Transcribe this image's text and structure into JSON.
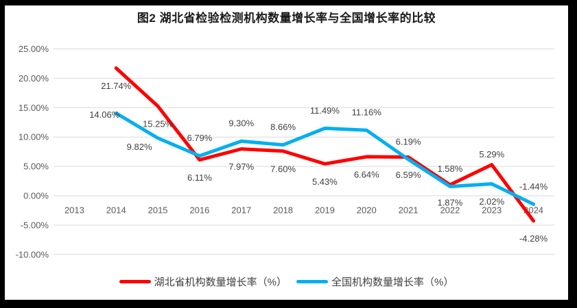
{
  "chart_data": {
    "type": "line",
    "title": "图2  湖北省检验检测机构数量增长率与全国增长率的比较",
    "categories": [
      "2013",
      "2014",
      "2015",
      "2016",
      "2017",
      "2018",
      "2019",
      "2020",
      "2021",
      "2022",
      "2023",
      "2024"
    ],
    "y_axis": {
      "ticks": [
        {
          "label": "25.00%",
          "value": 25
        },
        {
          "label": "20.00%",
          "value": 20
        },
        {
          "label": "15.00%",
          "value": 15
        },
        {
          "label": "10.00%",
          "value": 10
        },
        {
          "label": "5.00%",
          "value": 5
        },
        {
          "label": "0.00%",
          "value": 0
        },
        {
          "label": "-5.00%",
          "value": -5
        },
        {
          "label": "-10.00%",
          "value": -10
        }
      ],
      "ylim": [
        -10,
        25
      ]
    },
    "grid": true,
    "legend_position": "bottom",
    "series": [
      {
        "name": "湖北省机构数量增长率（%）",
        "color": "#FF0000",
        "values": [
          null,
          21.74,
          15.25,
          6.11,
          7.97,
          7.6,
          5.43,
          6.64,
          6.59,
          1.87,
          5.29,
          -4.28
        ],
        "labels": [
          null,
          "21.74%",
          "15.25%",
          "6.11%",
          "7.97%",
          "7.60%",
          "5.43%",
          "6.64%",
          "6.59%",
          "1.87%",
          "5.29%",
          "-4.28%"
        ],
        "label_positions": [
          null,
          "below",
          "below",
          "below",
          "below",
          "below",
          "below",
          "below",
          "below",
          "below",
          "nearabove",
          "below"
        ]
      },
      {
        "name": "全国机构数量增长率（%）",
        "color": "#00B0F0",
        "values": [
          null,
          14.06,
          9.82,
          6.79,
          9.3,
          8.66,
          11.49,
          11.16,
          6.19,
          1.58,
          2.02,
          -1.44
        ],
        "labels": [
          null,
          "14.06%",
          "9.82%",
          "6.79%",
          "9.30%",
          "8.66%",
          "11.49%",
          "11.16%",
          "6.19%",
          "1.58%",
          "2.02%",
          "-1.44%"
        ],
        "label_positions": [
          null,
          "left",
          "belowleft",
          "above",
          "above",
          "above",
          "above",
          "above",
          "above",
          "above",
          "below",
          "above"
        ]
      }
    ],
    "colors": {
      "gridline": "#D9D9D9",
      "axis_text": "#595959",
      "data_label_text": "#404040",
      "frame": "#000000",
      "background": "#FFFFFF"
    }
  }
}
